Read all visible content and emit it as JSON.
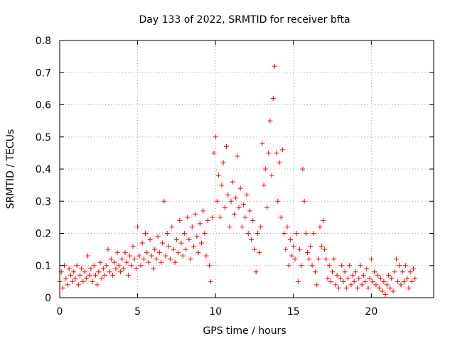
{
  "chart_data": {
    "type": "scatter",
    "title": "Day 133 of 2022, SRMTID for receiver bfta",
    "xlabel": "GPS time / hours",
    "ylabel": "SRMTID / TECUs",
    "xlim": [
      0,
      24
    ],
    "ylim": [
      0,
      0.8
    ],
    "xticks": [
      "0",
      "5",
      "10",
      "15",
      "20"
    ],
    "xtick_values": [
      0,
      5,
      10,
      15,
      20
    ],
    "yticks": [
      "0",
      "0.1",
      "0.2",
      "0.3",
      "0.4",
      "0.5",
      "0.6",
      "0.7",
      "0.8"
    ],
    "ytick_values": [
      0,
      0.1,
      0.2,
      0.3,
      0.4,
      0.5,
      0.6,
      0.7,
      0.8
    ],
    "grid": true,
    "marker": "+",
    "series": [
      {
        "name": "SRMTID",
        "color": "#ff0000",
        "points": [
          [
            0.0,
            0.05
          ],
          [
            0.1,
            0.08
          ],
          [
            0.2,
            0.03
          ],
          [
            0.3,
            0.1
          ],
          [
            0.4,
            0.06
          ],
          [
            0.5,
            0.04
          ],
          [
            0.6,
            0.09
          ],
          [
            0.7,
            0.07
          ],
          [
            0.8,
            0.05
          ],
          [
            0.9,
            0.08
          ],
          [
            1.0,
            0.06
          ],
          [
            1.1,
            0.1
          ],
          [
            1.2,
            0.04
          ],
          [
            1.3,
            0.07
          ],
          [
            1.4,
            0.09
          ],
          [
            1.5,
            0.05
          ],
          [
            1.6,
            0.08
          ],
          [
            1.7,
            0.06
          ],
          [
            1.8,
            0.13
          ],
          [
            1.9,
            0.07
          ],
          [
            2.0,
            0.09
          ],
          [
            2.1,
            0.05
          ],
          [
            2.2,
            0.1
          ],
          [
            2.3,
            0.07
          ],
          [
            2.4,
            0.04
          ],
          [
            2.5,
            0.08
          ],
          [
            2.6,
            0.11
          ],
          [
            2.7,
            0.06
          ],
          [
            2.8,
            0.09
          ],
          [
            2.9,
            0.07
          ],
          [
            3.0,
            0.1
          ],
          [
            3.1,
            0.15
          ],
          [
            3.2,
            0.08
          ],
          [
            3.3,
            0.12
          ],
          [
            3.4,
            0.07
          ],
          [
            3.5,
            0.11
          ],
          [
            3.6,
            0.09
          ],
          [
            3.7,
            0.14
          ],
          [
            3.8,
            0.1
          ],
          [
            3.9,
            0.08
          ],
          [
            4.0,
            0.12
          ],
          [
            4.1,
            0.09
          ],
          [
            4.2,
            0.14
          ],
          [
            4.3,
            0.11
          ],
          [
            4.4,
            0.07
          ],
          [
            4.5,
            0.13
          ],
          [
            4.6,
            0.1
          ],
          [
            4.7,
            0.16
          ],
          [
            4.8,
            0.12
          ],
          [
            4.9,
            0.09
          ],
          [
            5.0,
            0.22
          ],
          [
            5.1,
            0.13
          ],
          [
            5.2,
            0.1
          ],
          [
            5.3,
            0.17
          ],
          [
            5.4,
            0.12
          ],
          [
            5.5,
            0.2
          ],
          [
            5.6,
            0.14
          ],
          [
            5.7,
            0.11
          ],
          [
            5.8,
            0.18
          ],
          [
            5.9,
            0.13
          ],
          [
            6.0,
            0.09
          ],
          [
            6.1,
            0.15
          ],
          [
            6.2,
            0.12
          ],
          [
            6.3,
            0.19
          ],
          [
            6.4,
            0.14
          ],
          [
            6.5,
            0.11
          ],
          [
            6.6,
            0.17
          ],
          [
            6.7,
            0.3
          ],
          [
            6.8,
            0.13
          ],
          [
            6.9,
            0.2
          ],
          [
            7.0,
            0.16
          ],
          [
            7.1,
            0.12
          ],
          [
            7.2,
            0.22
          ],
          [
            7.3,
            0.15
          ],
          [
            7.4,
            0.11
          ],
          [
            7.5,
            0.18
          ],
          [
            7.6,
            0.14
          ],
          [
            7.7,
            0.24
          ],
          [
            7.8,
            0.17
          ],
          [
            7.9,
            0.13
          ],
          [
            8.0,
            0.2
          ],
          [
            8.1,
            0.15
          ],
          [
            8.2,
            0.25
          ],
          [
            8.3,
            0.18
          ],
          [
            8.4,
            0.12
          ],
          [
            8.5,
            0.22
          ],
          [
            8.6,
            0.16
          ],
          [
            8.7,
            0.26
          ],
          [
            8.8,
            0.19
          ],
          [
            8.9,
            0.14
          ],
          [
            9.0,
            0.23
          ],
          [
            9.1,
            0.17
          ],
          [
            9.2,
            0.27
          ],
          [
            9.3,
            0.2
          ],
          [
            9.4,
            0.13
          ],
          [
            9.5,
            0.24
          ],
          [
            9.6,
            0.1
          ],
          [
            9.7,
            0.05
          ],
          [
            9.8,
            0.25
          ],
          [
            9.9,
            0.45
          ],
          [
            10.0,
            0.5
          ],
          [
            10.1,
            0.3
          ],
          [
            10.2,
            0.38
          ],
          [
            10.3,
            0.25
          ],
          [
            10.4,
            0.35
          ],
          [
            10.5,
            0.42
          ],
          [
            10.6,
            0.28
          ],
          [
            10.7,
            0.47
          ],
          [
            10.8,
            0.32
          ],
          [
            10.9,
            0.22
          ],
          [
            11.0,
            0.3
          ],
          [
            11.1,
            0.36
          ],
          [
            11.2,
            0.26
          ],
          [
            11.3,
            0.31
          ],
          [
            11.4,
            0.44
          ],
          [
            11.5,
            0.28
          ],
          [
            11.6,
            0.34
          ],
          [
            11.7,
            0.22
          ],
          [
            11.8,
            0.29
          ],
          [
            11.9,
            0.25
          ],
          [
            12.0,
            0.32
          ],
          [
            12.1,
            0.2
          ],
          [
            12.2,
            0.27
          ],
          [
            12.3,
            0.18
          ],
          [
            12.4,
            0.24
          ],
          [
            12.5,
            0.15
          ],
          [
            12.6,
            0.08
          ],
          [
            12.7,
            0.2
          ],
          [
            12.8,
            0.14
          ],
          [
            12.9,
            0.22
          ],
          [
            13.0,
            0.48
          ],
          [
            13.1,
            0.35
          ],
          [
            13.2,
            0.4
          ],
          [
            13.3,
            0.28
          ],
          [
            13.4,
            0.45
          ],
          [
            13.5,
            0.55
          ],
          [
            13.6,
            0.38
          ],
          [
            13.7,
            0.62
          ],
          [
            13.8,
            0.72
          ],
          [
            13.9,
            0.45
          ],
          [
            14.0,
            0.3
          ],
          [
            14.1,
            0.42
          ],
          [
            14.2,
            0.25
          ],
          [
            14.3,
            0.46
          ],
          [
            14.4,
            0.2
          ],
          [
            14.5,
            0.15
          ],
          [
            14.6,
            0.22
          ],
          [
            14.7,
            0.1
          ],
          [
            14.8,
            0.18
          ],
          [
            14.9,
            0.13
          ],
          [
            15.0,
            0.16
          ],
          [
            15.1,
            0.12
          ],
          [
            15.2,
            0.2
          ],
          [
            15.3,
            0.05
          ],
          [
            15.4,
            0.15
          ],
          [
            15.5,
            0.1
          ],
          [
            15.6,
            0.4
          ],
          [
            15.7,
            0.3
          ],
          [
            15.8,
            0.2
          ],
          [
            15.9,
            0.14
          ],
          [
            16.0,
            0.12
          ],
          [
            16.1,
            0.16
          ],
          [
            16.2,
            0.1
          ],
          [
            16.3,
            0.2
          ],
          [
            16.4,
            0.08
          ],
          [
            16.5,
            0.04
          ],
          [
            16.6,
            0.12
          ],
          [
            16.7,
            0.22
          ],
          [
            16.8,
            0.16
          ],
          [
            16.9,
            0.24
          ],
          [
            17.0,
            0.15
          ],
          [
            17.1,
            0.12
          ],
          [
            17.2,
            0.06
          ],
          [
            17.3,
            0.1
          ],
          [
            17.4,
            0.05
          ],
          [
            17.5,
            0.08
          ],
          [
            17.6,
            0.12
          ],
          [
            17.7,
            0.04
          ],
          [
            17.8,
            0.07
          ],
          [
            17.9,
            0.03
          ],
          [
            18.0,
            0.06
          ],
          [
            18.1,
            0.1
          ],
          [
            18.2,
            0.05
          ],
          [
            18.3,
            0.08
          ],
          [
            18.4,
            0.03
          ],
          [
            18.5,
            0.06
          ],
          [
            18.6,
            0.1
          ],
          [
            18.7,
            0.04
          ],
          [
            18.8,
            0.07
          ],
          [
            18.9,
            0.05
          ],
          [
            19.0,
            0.08
          ],
          [
            19.1,
            0.03
          ],
          [
            19.2,
            0.06
          ],
          [
            19.3,
            0.1
          ],
          [
            19.4,
            0.04
          ],
          [
            19.5,
            0.07
          ],
          [
            19.6,
            0.05
          ],
          [
            19.7,
            0.09
          ],
          [
            19.8,
            0.03
          ],
          [
            19.9,
            0.06
          ],
          [
            20.0,
            0.12
          ],
          [
            20.1,
            0.05
          ],
          [
            20.2,
            0.08
          ],
          [
            20.3,
            0.04
          ],
          [
            20.4,
            0.07
          ],
          [
            20.5,
            0.03
          ],
          [
            20.6,
            0.06
          ],
          [
            20.7,
            0.02
          ],
          [
            20.8,
            0.05
          ],
          [
            20.9,
            0.01
          ],
          [
            21.0,
            0.04
          ],
          [
            21.1,
            0.07
          ],
          [
            21.2,
            0.03
          ],
          [
            21.3,
            0.06
          ],
          [
            21.4,
            0.02
          ],
          [
            21.5,
            0.08
          ],
          [
            21.6,
            0.12
          ],
          [
            21.7,
            0.05
          ],
          [
            21.8,
            0.1
          ],
          [
            21.9,
            0.04
          ],
          [
            22.0,
            0.08
          ],
          [
            22.1,
            0.05
          ],
          [
            22.2,
            0.1
          ],
          [
            22.3,
            0.06
          ],
          [
            22.4,
            0.03
          ],
          [
            22.5,
            0.08
          ],
          [
            22.6,
            0.05
          ],
          [
            22.7,
            0.09
          ],
          [
            22.8,
            0.06
          ]
        ]
      }
    ]
  }
}
